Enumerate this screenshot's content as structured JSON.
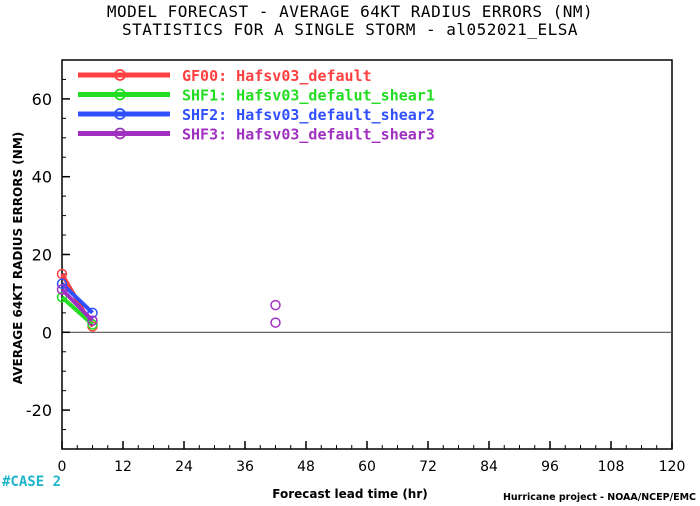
{
  "chart_data": {
    "type": "line",
    "title": "MODEL FORECAST - AVERAGE 64KT RADIUS ERRORS (NM)",
    "subtitle": "STATISTICS FOR A SINGLE STORM - al052021_ELSA",
    "xlabel": "Forecast lead time (hr)",
    "ylabel": "AVERAGE 64KT RADIUS ERRORS (NM)",
    "xlim": [
      0,
      120
    ],
    "ylim": [
      -30,
      70
    ],
    "xticks": [
      0,
      12,
      24,
      36,
      48,
      60,
      72,
      84,
      96,
      108,
      120
    ],
    "yticks": [
      -20,
      0,
      20,
      40,
      60
    ],
    "legend_position": "top-left",
    "grid": false,
    "series": [
      {
        "name": "GF00: Hafsv03_default",
        "color": "#ff4040",
        "x": [
          0,
          6
        ],
        "y": [
          15,
          1.5
        ],
        "extra_points": []
      },
      {
        "name": "SHF1: Hafsv03_defalut_shear1",
        "color": "#22dd22",
        "x": [
          0,
          6
        ],
        "y": [
          9,
          2
        ],
        "extra_points": []
      },
      {
        "name": "SHF2: Hafsv03_default_shear2",
        "color": "#3050ff",
        "x": [
          0,
          6
        ],
        "y": [
          12.5,
          5
        ],
        "extra_points": []
      },
      {
        "name": "SHF3: Hafsv03_default_shear3",
        "color": "#a030c0",
        "x": [
          0,
          6
        ],
        "y": [
          11,
          3
        ],
        "extra_points": [
          [
            42,
            7
          ],
          [
            42,
            2.5
          ]
        ]
      }
    ]
  },
  "footer": {
    "case_label": "#CASE  2",
    "credit": "Hurricane project - NOAA/NCEP/EMC"
  }
}
